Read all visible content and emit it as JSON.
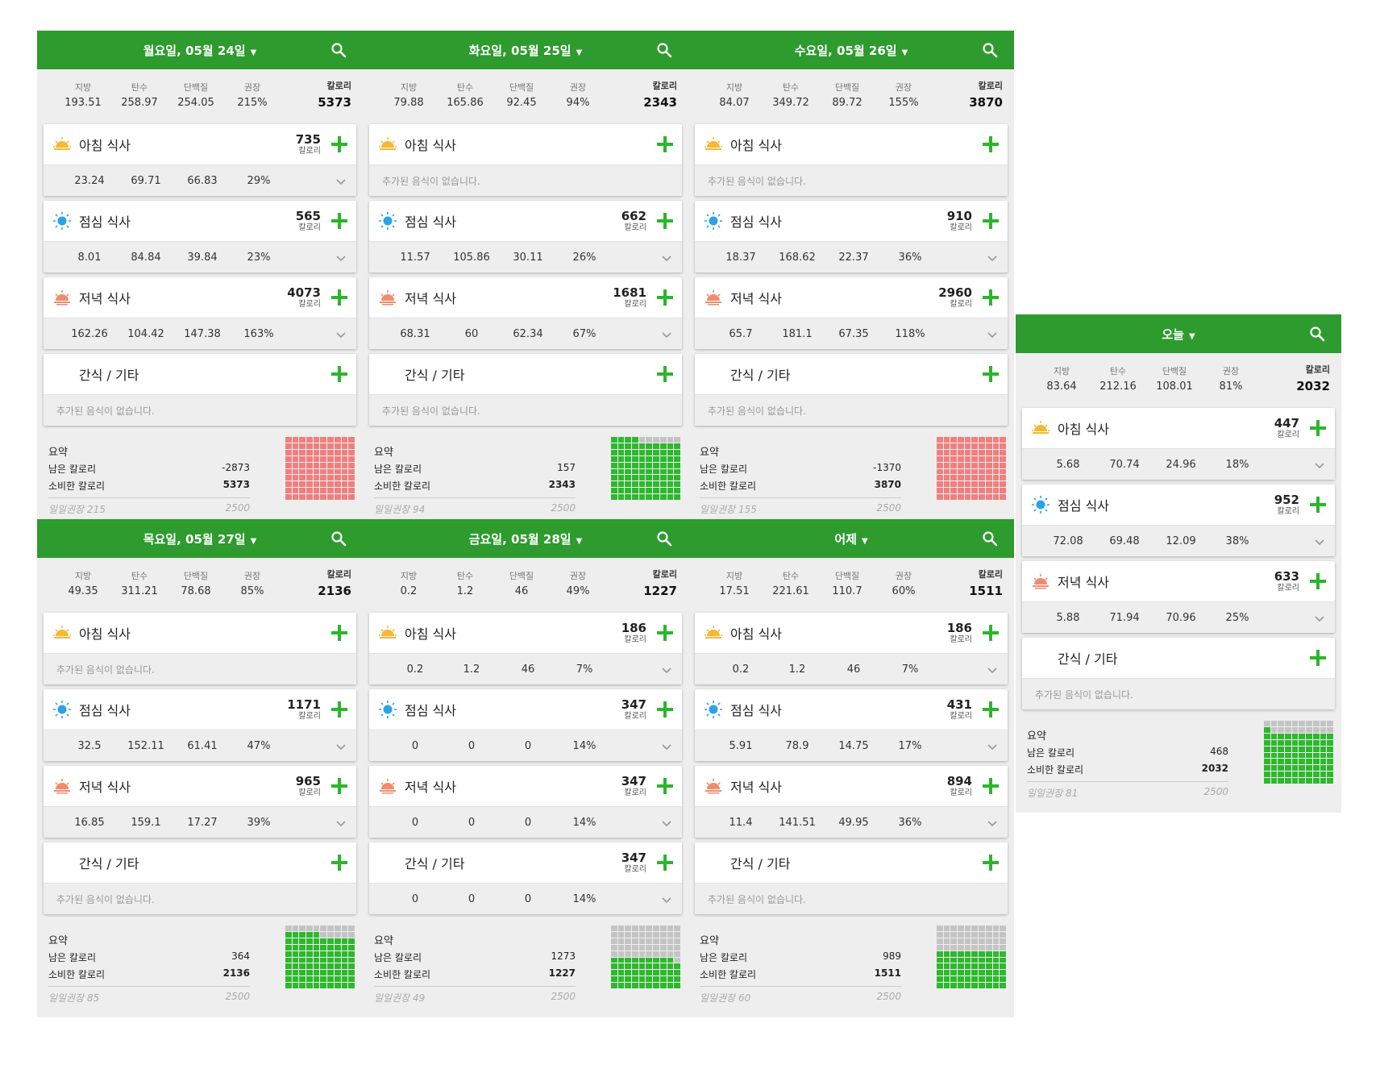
{
  "labels": {
    "fat": "지방",
    "carb": "탄수",
    "protein": "단백질",
    "rec": "권장",
    "cal": "칼로리",
    "cal_unit": "칼로리",
    "breakfast": "아침 식사",
    "lunch": "점심 식사",
    "dinner": "저녁 식사",
    "snack": "간식 / 기타",
    "empty": "추가된 음식이 없습니다.",
    "summary": "요약",
    "remaining": "남은 칼로리",
    "consumed": "소비한 칼로리",
    "daily_rec": "일일권장"
  },
  "colors": {
    "header": "#2e9b2e",
    "plus": "#2cb52c",
    "grid_green": "#2eb82e",
    "grid_red": "#f07f7f",
    "grid_gray": "#c4c4c4"
  },
  "icons": {
    "breakfast": "sunrise-icon",
    "lunch": "sun-icon",
    "dinner": "sunset-icon",
    "snack": "moon-icon",
    "search": "search-icon",
    "add": "plus-icon",
    "expand": "chevron-down-icon"
  },
  "days": [
    {
      "title": "월요일, 05월 24일",
      "totals": {
        "fat": "193.51",
        "carb": "258.97",
        "protein": "254.05",
        "rec": "215%",
        "cal": "5373"
      },
      "meals": [
        {
          "cal": "735",
          "fat": "23.24",
          "carb": "69.71",
          "protein": "66.83",
          "rec": "29%"
        },
        {
          "cal": "565",
          "fat": "8.01",
          "carb": "84.84",
          "protein": "39.84",
          "rec": "23%"
        },
        {
          "cal": "4073",
          "fat": "162.26",
          "carb": "104.42",
          "protein": "147.38",
          "rec": "163%"
        },
        null
      ],
      "summary": {
        "remaining": "-2873",
        "consumed": "5373",
        "rec_pct": "215",
        "goal": "2500",
        "fill": 1.0,
        "over": true
      }
    },
    {
      "title": "화요일, 05월 25일",
      "totals": {
        "fat": "79.88",
        "carb": "165.86",
        "protein": "92.45",
        "rec": "94%",
        "cal": "2343"
      },
      "meals": [
        null,
        {
          "cal": "662",
          "fat": "11.57",
          "carb": "105.86",
          "protein": "30.11",
          "rec": "26%"
        },
        {
          "cal": "1681",
          "fat": "68.31",
          "carb": "60",
          "protein": "62.34",
          "rec": "67%"
        },
        null
      ],
      "summary": {
        "remaining": "157",
        "consumed": "2343",
        "rec_pct": "94",
        "goal": "2500",
        "fill": 0.94,
        "over": false
      }
    },
    {
      "title": "수요일, 05월 26일",
      "totals": {
        "fat": "84.07",
        "carb": "349.72",
        "protein": "89.72",
        "rec": "155%",
        "cal": "3870"
      },
      "meals": [
        null,
        {
          "cal": "910",
          "fat": "18.37",
          "carb": "168.62",
          "protein": "22.37",
          "rec": "36%"
        },
        {
          "cal": "2960",
          "fat": "65.7",
          "carb": "181.1",
          "protein": "67.35",
          "rec": "118%"
        },
        null
      ],
      "summary": {
        "remaining": "-1370",
        "consumed": "3870",
        "rec_pct": "155",
        "goal": "2500",
        "fill": 1.0,
        "over": true
      }
    },
    {
      "title": "오늘",
      "totals": {
        "fat": "83.64",
        "carb": "212.16",
        "protein": "108.01",
        "rec": "81%",
        "cal": "2032"
      },
      "meals": [
        {
          "cal": "447",
          "fat": "5.68",
          "carb": "70.74",
          "protein": "24.96",
          "rec": "18%"
        },
        {
          "cal": "952",
          "fat": "72.08",
          "carb": "69.48",
          "protein": "12.09",
          "rec": "38%"
        },
        {
          "cal": "633",
          "fat": "5.88",
          "carb": "71.94",
          "protein": "70.96",
          "rec": "25%"
        },
        null
      ],
      "summary": {
        "remaining": "468",
        "consumed": "2032",
        "rec_pct": "81",
        "goal": "2500",
        "fill": 0.81,
        "over": false
      }
    },
    {
      "title": "목요일, 05월 27일",
      "totals": {
        "fat": "49.35",
        "carb": "311.21",
        "protein": "78.68",
        "rec": "85%",
        "cal": "2136"
      },
      "meals": [
        null,
        {
          "cal": "1171",
          "fat": "32.5",
          "carb": "152.11",
          "protein": "61.41",
          "rec": "47%"
        },
        {
          "cal": "965",
          "fat": "16.85",
          "carb": "159.1",
          "protein": "17.27",
          "rec": "39%"
        },
        null
      ],
      "summary": {
        "remaining": "364",
        "consumed": "2136",
        "rec_pct": "85",
        "goal": "2500",
        "fill": 0.85,
        "over": false
      }
    },
    {
      "title": "금요일, 05월 28일",
      "totals": {
        "fat": "0.2",
        "carb": "1.2",
        "protein": "46",
        "rec": "49%",
        "cal": "1227"
      },
      "meals": [
        {
          "cal": "186",
          "fat": "0.2",
          "carb": "1.2",
          "protein": "46",
          "rec": "7%"
        },
        {
          "cal": "347",
          "fat": "0",
          "carb": "0",
          "protein": "0",
          "rec": "14%"
        },
        {
          "cal": "347",
          "fat": "0",
          "carb": "0",
          "protein": "0",
          "rec": "14%"
        },
        {
          "cal": "347",
          "fat": "0",
          "carb": "0",
          "protein": "0",
          "rec": "14%"
        }
      ],
      "summary": {
        "remaining": "1273",
        "consumed": "1227",
        "rec_pct": "49",
        "goal": "2500",
        "fill": 0.49,
        "over": false
      }
    },
    {
      "title": "어제",
      "totals": {
        "fat": "17.51",
        "carb": "221.61",
        "protein": "110.7",
        "rec": "60%",
        "cal": "1511"
      },
      "meals": [
        {
          "cal": "186",
          "fat": "0.2",
          "carb": "1.2",
          "protein": "46",
          "rec": "7%"
        },
        {
          "cal": "431",
          "fat": "5.91",
          "carb": "78.9",
          "protein": "14.75",
          "rec": "17%"
        },
        {
          "cal": "894",
          "fat": "11.4",
          "carb": "141.51",
          "protein": "49.95",
          "rec": "36%"
        },
        null
      ],
      "summary": {
        "remaining": "989",
        "consumed": "1511",
        "rec_pct": "60",
        "goal": "2500",
        "fill": 0.6,
        "over": false
      }
    }
  ]
}
